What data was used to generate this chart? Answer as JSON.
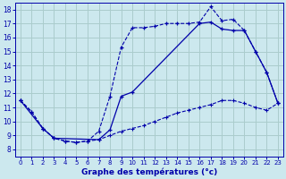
{
  "bg_color": "#cce8ee",
  "grid_color": "#aacccc",
  "line_color": "#0000aa",
  "xlabel": "Graphe des températures (°c)",
  "xlim": [
    -0.5,
    23.5
  ],
  "ylim": [
    7.5,
    18.5
  ],
  "yticks": [
    8,
    9,
    10,
    11,
    12,
    13,
    14,
    15,
    16,
    17,
    18
  ],
  "xticks": [
    0,
    1,
    2,
    3,
    4,
    5,
    6,
    7,
    8,
    9,
    10,
    11,
    12,
    13,
    14,
    15,
    16,
    17,
    18,
    19,
    20,
    21,
    22,
    23
  ],
  "curve1_x": [
    0,
    1,
    2,
    3,
    4,
    5,
    6,
    7,
    8,
    9,
    10,
    11,
    12,
    13,
    14,
    15,
    16,
    17,
    18,
    19,
    20,
    21,
    22,
    23
  ],
  "curve1_y": [
    11.5,
    10.7,
    9.5,
    8.8,
    8.6,
    8.5,
    8.6,
    9.3,
    11.8,
    15.3,
    16.7,
    16.7,
    16.8,
    17.0,
    17.0,
    17.0,
    17.1,
    18.2,
    17.2,
    17.3,
    16.5,
    15.0,
    13.5,
    11.3
  ],
  "curve2_x": [
    0,
    2,
    3,
    7,
    8,
    9,
    10,
    16,
    17,
    18,
    19,
    20,
    21,
    22,
    23
  ],
  "curve2_y": [
    11.5,
    9.5,
    8.8,
    8.7,
    9.4,
    11.8,
    12.1,
    17.0,
    17.1,
    16.6,
    16.5,
    16.5,
    15.0,
    13.5,
    11.3
  ],
  "curve3_x": [
    0,
    1,
    2,
    3,
    4,
    5,
    6,
    7,
    8,
    9,
    10,
    11,
    12,
    13,
    14,
    15,
    16,
    17,
    18,
    19,
    20,
    21,
    22,
    23
  ],
  "curve3_y": [
    11.5,
    10.7,
    9.5,
    8.8,
    8.6,
    8.5,
    8.6,
    8.7,
    9.0,
    9.3,
    9.5,
    9.7,
    10.0,
    10.3,
    10.6,
    10.8,
    11.0,
    11.2,
    11.5,
    11.5,
    11.3,
    11.0,
    10.8,
    11.3
  ]
}
